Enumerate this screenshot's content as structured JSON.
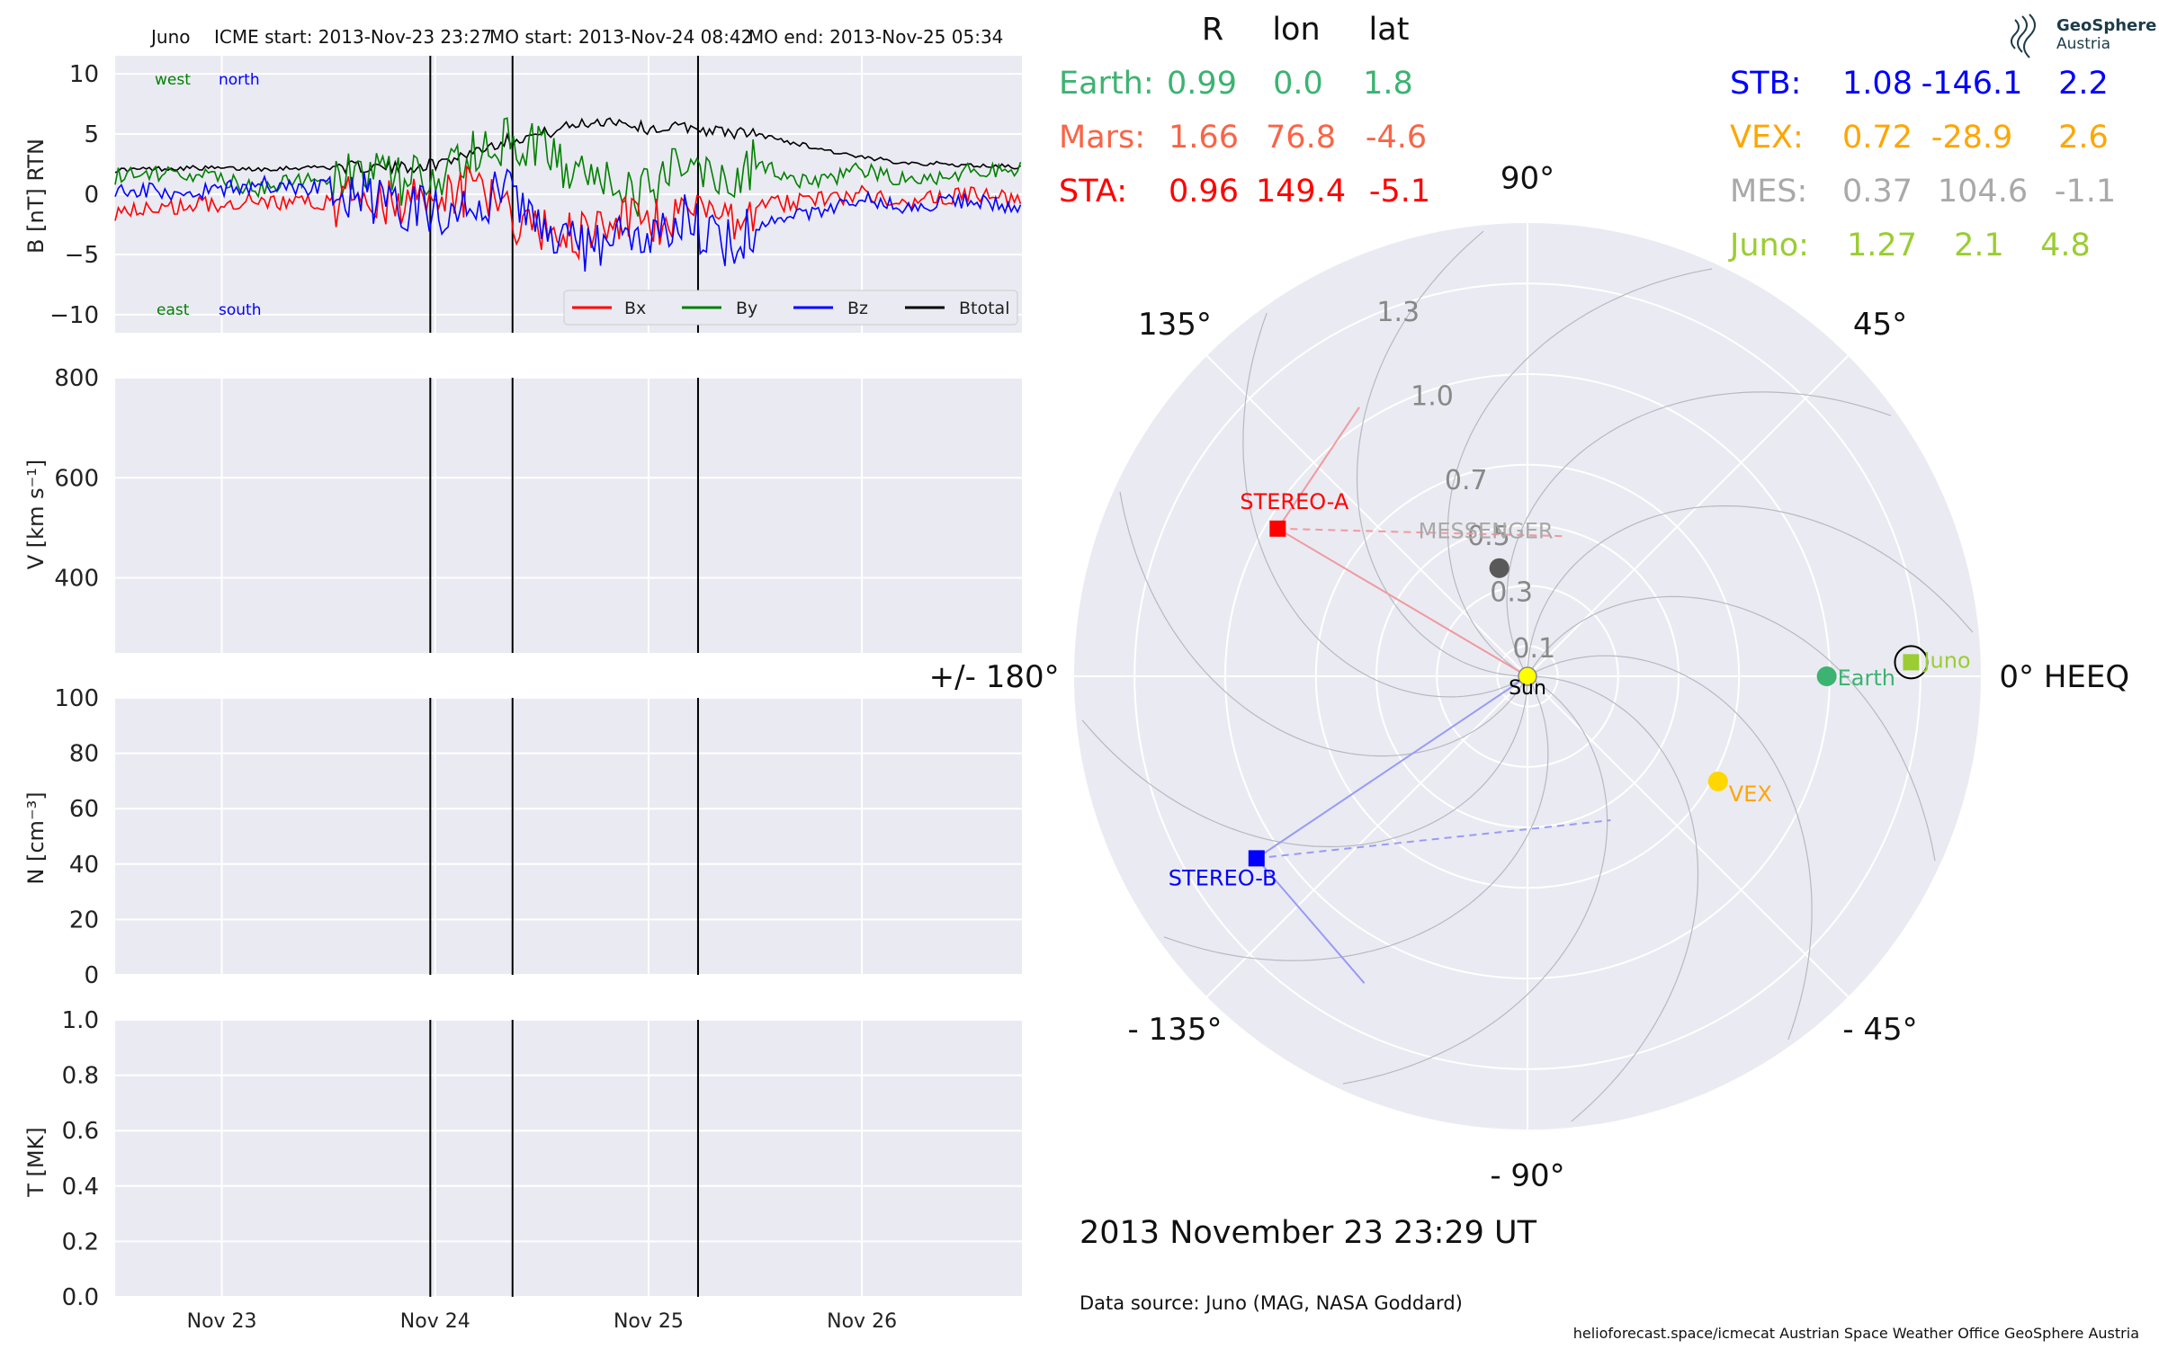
{
  "header": {
    "spacecraft": "Juno",
    "icme_start": "ICME start: 2013-Nov-23 23:27",
    "mo_start": "MO start: 2013-Nov-24 08:42",
    "mo_end": "MO end: 2013-Nov-25 05:34"
  },
  "logo": {
    "line1": "GeoSphere",
    "line2": "Austria"
  },
  "date_label": "2013 November 23  23:29 UT",
  "data_source": "Data source: Juno (MAG, NASA Goddard)",
  "credits": "helioforecast.space/icmecat   Austrian Space Weather Office   GeoSphere Austria",
  "table": {
    "headers": {
      "r": "R",
      "lon": "lon",
      "lat": "lat"
    },
    "left": [
      {
        "name": "Earth:",
        "r": "0.99",
        "lon": "0.0",
        "lat": "1.8",
        "color": "#3cb371"
      },
      {
        "name": "Mars:",
        "r": "1.66",
        "lon": "76.8",
        "lat": "-4.6",
        "color": "#fa6446"
      },
      {
        "name": "STA:",
        "r": "0.96",
        "lon": "149.4",
        "lat": "-5.1",
        "color": "#ff0000"
      }
    ],
    "right": [
      {
        "name": "STB:",
        "r": "1.08",
        "lon": "-146.1",
        "lat": "2.2",
        "color": "#0000ff"
      },
      {
        "name": "VEX:",
        "r": "0.72",
        "lon": "-28.9",
        "lat": "2.6",
        "color": "#ffa500"
      },
      {
        "name": "MES:",
        "r": "0.37",
        "lon": "104.6",
        "lat": "-1.1",
        "color": "#a9a9a9"
      },
      {
        "name": "Juno:",
        "r": "1.27",
        "lon": "2.1",
        "lat": "4.8",
        "color": "#9acd32"
      }
    ]
  },
  "chart_data": [
    {
      "type": "line",
      "panel": "magnetic_field",
      "ylabel": "B [nT] RTN",
      "ylim": [
        -11.5,
        11.5
      ],
      "yticks": [
        "10",
        "5",
        "0",
        "−5",
        "−10"
      ],
      "ytick_values": [
        10,
        5,
        0,
        -5,
        -10
      ],
      "xlim": [
        "2013-11-22 12:00",
        "2013-11-26 18:00"
      ],
      "annotations": {
        "west": "west",
        "north": "north",
        "east": "east",
        "south": "south"
      },
      "legend": {
        "placement": "lower-right",
        "entries": [
          {
            "name": "Bx",
            "color": "#ff0000"
          },
          {
            "name": "By",
            "color": "#008000"
          },
          {
            "name": "Bz",
            "color": "#0000ff"
          },
          {
            "name": "Btotal",
            "color": "#000000"
          }
        ]
      },
      "series": [
        {
          "name": "Btotal",
          "color": "#000000",
          "x": [
            "11-22 12:00",
            "11-22 20:00",
            "11-23 04:00",
            "11-23 12:00",
            "11-23 20:00",
            "11-24 00:00",
            "11-24 04:00",
            "11-24 08:00",
            "11-24 12:00",
            "11-24 16:00",
            "11-24 20:00",
            "11-25 00:00",
            "11-25 04:00",
            "11-25 08:00",
            "11-25 12:00",
            "11-25 18:00",
            "11-26 00:00",
            "11-26 06:00",
            "11-26 12:00",
            "11-26 18:00"
          ],
          "values": [
            2.0,
            2.2,
            2.1,
            2.3,
            2.2,
            2.5,
            3.5,
            4.5,
            5.0,
            5.8,
            6.2,
            5.4,
            5.6,
            5.2,
            5.0,
            4.0,
            3.0,
            2.6,
            2.4,
            2.3
          ]
        },
        {
          "name": "By",
          "color": "#008000",
          "x": [
            "11-22 12:00",
            "11-22 20:00",
            "11-23 04:00",
            "11-23 12:00",
            "11-23 20:00",
            "11-24 00:00",
            "11-24 04:00",
            "11-24 08:00",
            "11-24 12:00",
            "11-24 16:00",
            "11-24 20:00",
            "11-25 00:00",
            "11-25 04:00",
            "11-25 08:00",
            "11-25 12:00",
            "11-25 18:00",
            "11-26 00:00",
            "11-26 06:00",
            "11-26 12:00",
            "11-26 18:00"
          ],
          "values": [
            1.5,
            1.8,
            0.5,
            1.5,
            1.2,
            1.0,
            3.0,
            4.5,
            3.5,
            1.5,
            1.0,
            0.0,
            3.0,
            1.5,
            2.5,
            1.0,
            2.0,
            1.0,
            2.0,
            2.0
          ]
        },
        {
          "name": "Bx",
          "color": "#ff0000",
          "x": [
            "11-22 12:00",
            "11-22 20:00",
            "11-23 04:00",
            "11-23 12:00",
            "11-23 20:00",
            "11-24 00:00",
            "11-24 04:00",
            "11-24 08:00",
            "11-24 12:00",
            "11-24 16:00",
            "11-24 20:00",
            "11-25 00:00",
            "11-25 04:00",
            "11-25 08:00",
            "11-25 12:00",
            "11-25 18:00",
            "11-26 00:00",
            "11-26 06:00",
            "11-26 12:00",
            "11-26 18:00"
          ],
          "values": [
            -1.5,
            -1.0,
            -0.5,
            -0.8,
            -0.5,
            -1.0,
            0.5,
            -1.5,
            -3.0,
            -3.5,
            -2.0,
            -3.0,
            -1.0,
            -2.0,
            -1.0,
            -0.5,
            0.0,
            -0.5,
            0.0,
            -0.5
          ]
        },
        {
          "name": "Bz",
          "color": "#0000ff",
          "x": [
            "11-22 12:00",
            "11-22 20:00",
            "11-23 04:00",
            "11-23 12:00",
            "11-23 20:00",
            "11-24 00:00",
            "11-24 04:00",
            "11-24 08:00",
            "11-24 12:00",
            "11-24 16:00",
            "11-24 20:00",
            "11-25 00:00",
            "11-25 04:00",
            "11-25 08:00",
            "11-25 12:00",
            "11-25 18:00",
            "11-26 00:00",
            "11-26 06:00",
            "11-26 12:00",
            "11-26 18:00"
          ],
          "values": [
            0.5,
            0.0,
            0.8,
            0.5,
            -1.0,
            -1.5,
            -1.0,
            0.5,
            -3.5,
            -4.5,
            -3.5,
            -4.5,
            -2.0,
            -4.0,
            -3.0,
            -1.5,
            -0.5,
            -1.0,
            -0.5,
            -1.0
          ]
        }
      ],
      "grid": true
    },
    {
      "type": "line",
      "panel": "speed",
      "ylabel": "V [km s⁻¹]",
      "ylim": [
        250,
        800
      ],
      "yticks": [
        "800",
        "600",
        "400"
      ],
      "ytick_values": [
        800,
        600,
        400
      ],
      "series": [],
      "grid": true
    },
    {
      "type": "line",
      "panel": "density",
      "ylabel": "N [cm⁻³]",
      "ylim": [
        0,
        100
      ],
      "yticks": [
        "100",
        "80",
        "60",
        "40",
        "20",
        "0"
      ],
      "ytick_values": [
        100,
        80,
        60,
        40,
        20,
        0
      ],
      "series": [],
      "grid": true
    },
    {
      "type": "line",
      "panel": "temperature",
      "ylabel": "T [MK]",
      "ylim": [
        0,
        1
      ],
      "yticks": [
        "1.0",
        "0.8",
        "0.6",
        "0.4",
        "0.2",
        "0.0"
      ],
      "ytick_values": [
        1.0,
        0.8,
        0.6,
        0.4,
        0.2,
        0.0
      ],
      "xticks": [
        "Nov 23",
        "Nov 24",
        "Nov 25",
        "Nov 26"
      ],
      "xtick_values": [
        "2013-11-23 00:00",
        "2013-11-24 00:00",
        "2013-11-25 00:00",
        "2013-11-26 00:00"
      ],
      "series": [],
      "grid": true
    },
    {
      "type": "scatter",
      "panel": "polar_position_plot",
      "coordinate_system": "HEEQ",
      "rmax": 1.5,
      "r_ticks": [
        "0.1",
        "0.3",
        "0.5",
        "0.7",
        "1.0",
        "1.3"
      ],
      "r_tick_values": [
        0.1,
        0.3,
        0.5,
        0.7,
        1.0,
        1.3
      ],
      "angle_labels": [
        {
          "deg": 0,
          "text": "0° HEEQ"
        },
        {
          "deg": 45,
          "text": "45°"
        },
        {
          "deg": 90,
          "text": "90°"
        },
        {
          "deg": 135,
          "text": "135°"
        },
        {
          "deg": 180,
          "text": "+/- 180°"
        },
        {
          "deg": -135,
          "text": "- 135°"
        },
        {
          "deg": -90,
          "text": "- 90°"
        },
        {
          "deg": -45,
          "text": "- 45°"
        }
      ],
      "bodies": [
        {
          "label": "Sun",
          "r": 0.0,
          "lon": 0.0,
          "marker": "circle",
          "color": "#ffff00"
        },
        {
          "label": "Earth",
          "r": 0.99,
          "lon": 0.0,
          "marker": "circle",
          "color": "#3cb371"
        },
        {
          "label": "Juno",
          "r": 1.27,
          "lon": 2.1,
          "marker": "square",
          "color": "#9acd32"
        },
        {
          "label": "VEX",
          "r": 0.72,
          "lon": -28.9,
          "marker": "circle",
          "color": "#ffd700",
          "label_color": "#ffa500"
        },
        {
          "label": "MESSENGER",
          "r": 0.37,
          "lon": 104.6,
          "marker": "circle",
          "color": "#595959",
          "label_color": "#a9a9a9"
        },
        {
          "label": "STEREO-A",
          "r": 0.96,
          "lon": 149.4,
          "marker": "square",
          "color": "#ff0000"
        },
        {
          "label": "STEREO-B",
          "r": 1.08,
          "lon": -146.1,
          "marker": "square",
          "color": "#0000ff"
        }
      ]
    }
  ]
}
